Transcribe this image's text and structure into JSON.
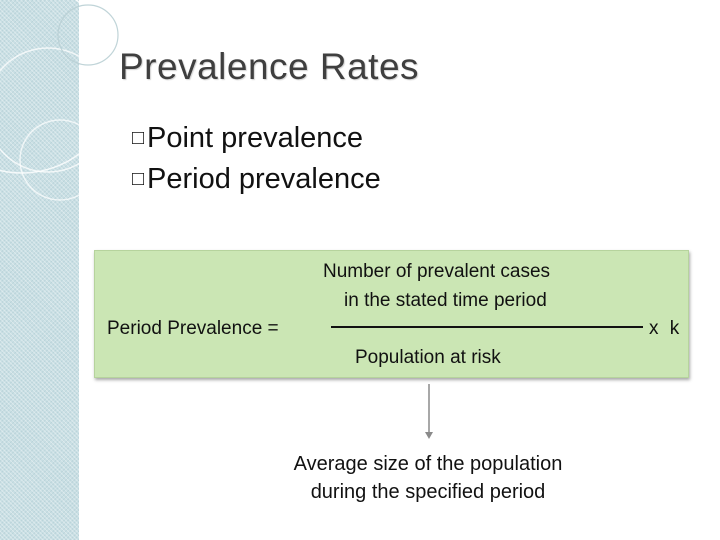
{
  "slide": {
    "title": "Prevalence Rates",
    "bullets": [
      {
        "marker": "□",
        "text": "Point prevalence"
      },
      {
        "marker": "□",
        "text": "Period prevalence"
      }
    ]
  },
  "formula": {
    "lhs": "Period Prevalence =",
    "numerator_line1": "Number of prevalent cases",
    "numerator_line2": "in the stated time period",
    "denominator": "Population at risk",
    "multiplier": "x k"
  },
  "annotation": {
    "line1": "Average size of the population",
    "line2": "during the specified period"
  },
  "colors": {
    "formula_box": "#cbe6b4",
    "side_strip": "#c9dfe4",
    "title_text": "#3f3f3f"
  }
}
